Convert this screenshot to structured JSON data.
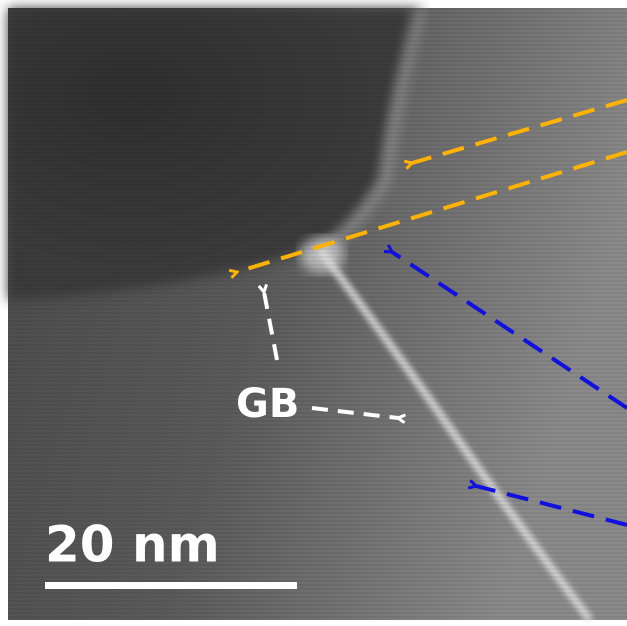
{
  "labels": {
    "grain_boundary": "GB",
    "scale_bar": "20 nm"
  }
}
